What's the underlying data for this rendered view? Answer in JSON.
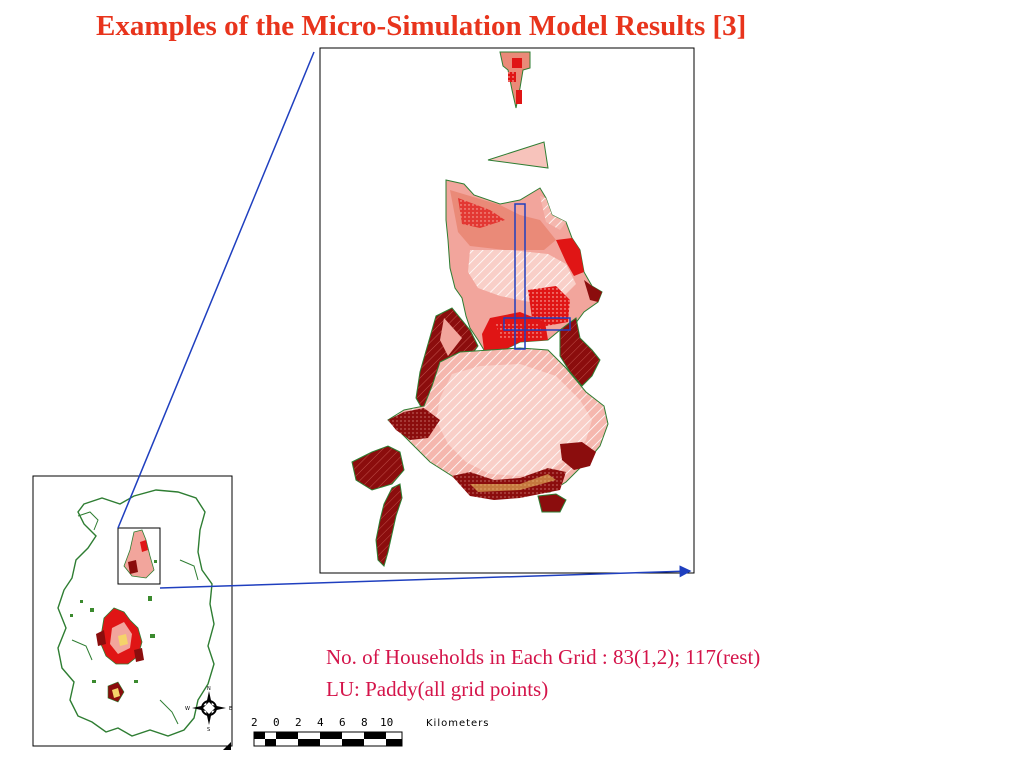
{
  "title": "Examples of the Micro-Simulation Model Results [3]",
  "notes": {
    "households": "No. of Households in Each Grid : 83(1,2); 117(rest)",
    "land_use": "LU: Paddy(all grid points)"
  },
  "scale_bar": {
    "ticks": [
      "2",
      "0",
      "2",
      "4",
      "6",
      "8",
      "10"
    ],
    "unit": "Kilometers"
  },
  "north_arrow": {
    "n": "N",
    "s": "S",
    "e": "E",
    "w": "W"
  },
  "colors": {
    "title": "#e8341c",
    "notes": "#d4144a",
    "boundary": "#2e7d32",
    "connector": "#1f3fbf",
    "dark_red": "#8b0d0d",
    "red": "#e01515",
    "pink": "#f2a59c",
    "light_pink": "#f7c3bb",
    "salmon": "#ea8a78"
  }
}
